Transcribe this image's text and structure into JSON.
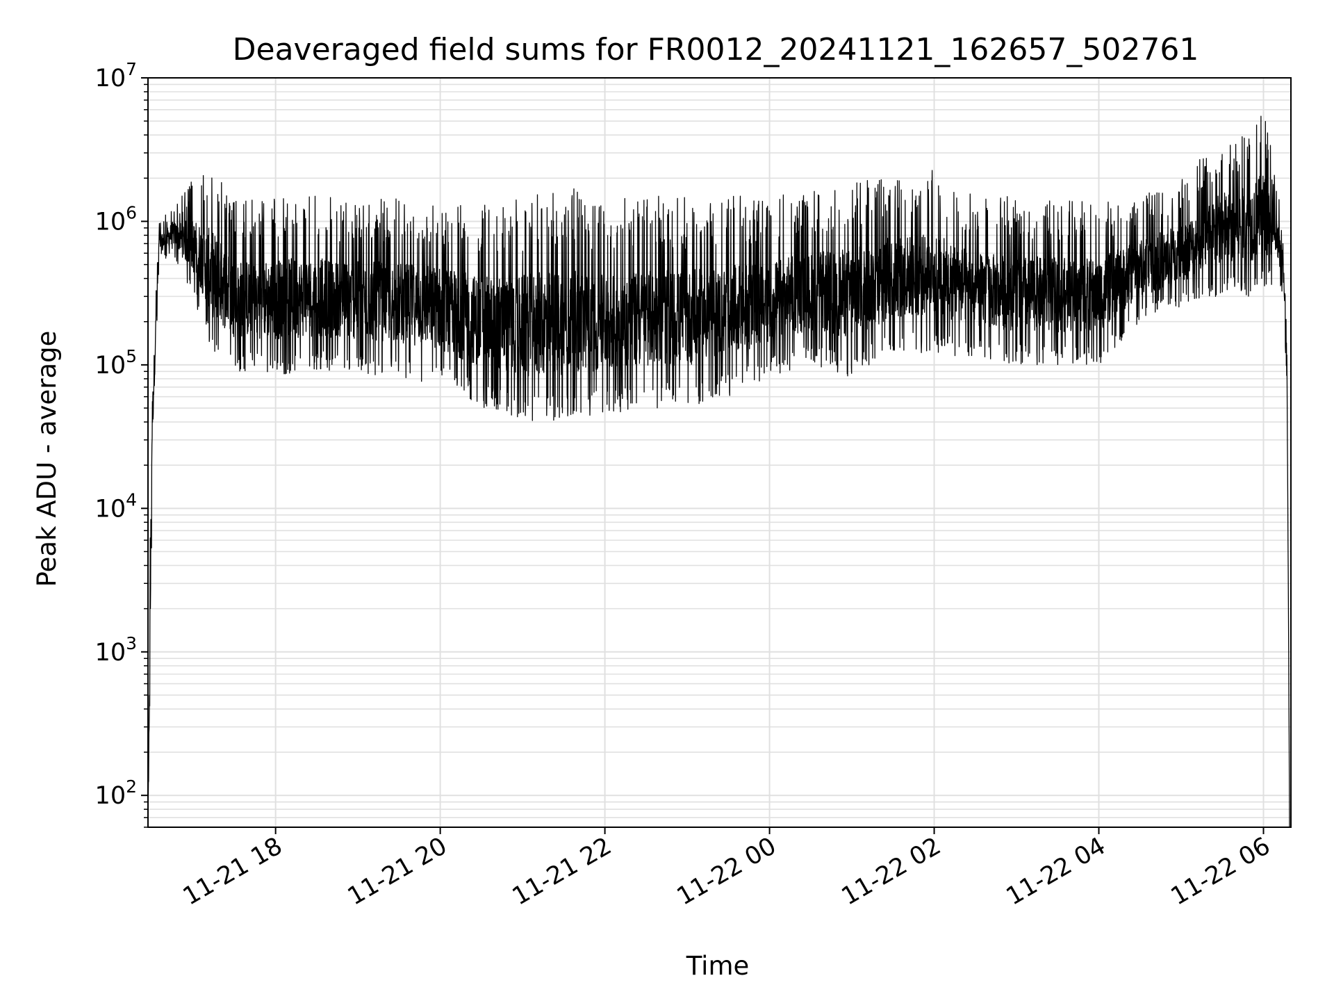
{
  "chart_data": {
    "type": "line",
    "title": "Deaveraged field sums for FR0012_20241121_162657_502761",
    "xlabel": "Time",
    "ylabel": "Peak ADU - average",
    "yscale": "log",
    "ylim": [
      60,
      10000000
    ],
    "xlim": [
      "2024-11-21 16:27",
      "2024-11-22 06:20"
    ],
    "grid": true,
    "line_color": "#000000",
    "grid_color": "#e0e0e0",
    "x_ticks": [
      {
        "time": "2024-11-21 18:00",
        "label": "11-21 18"
      },
      {
        "time": "2024-11-21 20:00",
        "label": "11-21 20"
      },
      {
        "time": "2024-11-21 22:00",
        "label": "11-21 22"
      },
      {
        "time": "2024-11-22 00:00",
        "label": "11-22 00"
      },
      {
        "time": "2024-11-22 02:00",
        "label": "11-22 02"
      },
      {
        "time": "2024-11-22 04:00",
        "label": "11-22 04"
      },
      {
        "time": "2024-11-22 06:00",
        "label": "11-22 06"
      }
    ],
    "y_ticks": [
      {
        "value": 100,
        "base": "10",
        "exp": "2"
      },
      {
        "value": 1000,
        "base": "10",
        "exp": "3"
      },
      {
        "value": 10000,
        "base": "10",
        "exp": "4"
      },
      {
        "value": 100000,
        "base": "10",
        "exp": "5"
      },
      {
        "value": 1000000,
        "base": "10",
        "exp": "6"
      },
      {
        "value": 10000000,
        "base": "10",
        "exp": "7"
      }
    ],
    "series": [
      {
        "values": [
          {
            "time": "2024-11-21 16:27",
            "low": 60,
            "high": 60
          },
          {
            "time": "2024-11-21 16:29",
            "low": 900,
            "high": 30000
          },
          {
            "time": "2024-11-21 16:30",
            "low": 18000,
            "high": 100000
          },
          {
            "time": "2024-11-21 16:35",
            "low": 500000,
            "high": 1000000
          },
          {
            "time": "2024-11-21 16:45",
            "low": 600000,
            "high": 1300000
          },
          {
            "time": "2024-11-21 17:00",
            "low": 300000,
            "high": 2000000
          },
          {
            "time": "2024-11-21 17:15",
            "low": 110000,
            "high": 2600000
          },
          {
            "time": "2024-11-21 17:30",
            "low": 90000,
            "high": 1400000
          },
          {
            "time": "2024-11-21 18:00",
            "low": 85000,
            "high": 1500000
          },
          {
            "time": "2024-11-21 18:30",
            "low": 90000,
            "high": 1500000
          },
          {
            "time": "2024-11-21 19:00",
            "low": 85000,
            "high": 1400000
          },
          {
            "time": "2024-11-21 19:30",
            "low": 80000,
            "high": 1450000
          },
          {
            "time": "2024-11-21 20:00",
            "low": 70000,
            "high": 1400000
          },
          {
            "time": "2024-11-21 20:30",
            "low": 50000,
            "high": 1300000
          },
          {
            "time": "2024-11-21 21:00",
            "low": 40000,
            "high": 1500000
          },
          {
            "time": "2024-11-21 21:30",
            "low": 40000,
            "high": 1800000
          },
          {
            "time": "2024-11-21 22:00",
            "low": 45000,
            "high": 1400000
          },
          {
            "time": "2024-11-21 22:30",
            "low": 50000,
            "high": 1500000
          },
          {
            "time": "2024-11-21 23:00",
            "low": 50000,
            "high": 1500000
          },
          {
            "time": "2024-11-21 23:30",
            "low": 60000,
            "high": 1500000
          },
          {
            "time": "2024-11-22 00:00",
            "low": 80000,
            "high": 1500000
          },
          {
            "time": "2024-11-22 00:30",
            "low": 100000,
            "high": 1600000
          },
          {
            "time": "2024-11-22 01:00",
            "low": 80000,
            "high": 2000000
          },
          {
            "time": "2024-11-22 01:30",
            "low": 120000,
            "high": 2200000
          },
          {
            "time": "2024-11-22 02:00",
            "low": 120000,
            "high": 2300000
          },
          {
            "time": "2024-11-22 02:30",
            "low": 110000,
            "high": 1500000
          },
          {
            "time": "2024-11-22 03:00",
            "low": 100000,
            "high": 1500000
          },
          {
            "time": "2024-11-22 03:30",
            "low": 100000,
            "high": 1400000
          },
          {
            "time": "2024-11-22 04:00",
            "low": 100000,
            "high": 1400000
          },
          {
            "time": "2024-11-22 04:30",
            "low": 200000,
            "high": 1500000
          },
          {
            "time": "2024-11-22 05:00",
            "low": 250000,
            "high": 2000000
          },
          {
            "time": "2024-11-22 05:30",
            "low": 300000,
            "high": 4000000
          },
          {
            "time": "2024-11-22 05:50",
            "low": 300000,
            "high": 4500000
          },
          {
            "time": "2024-11-22 06:00",
            "low": 350000,
            "high": 6000000
          },
          {
            "time": "2024-11-22 06:10",
            "low": 350000,
            "high": 2000000
          },
          {
            "time": "2024-11-22 06:15",
            "low": 300000,
            "high": 600000
          },
          {
            "time": "2024-11-22 06:17",
            "low": 50000,
            "high": 300000
          },
          {
            "time": "2024-11-22 06:18",
            "low": 3300,
            "high": 7000
          },
          {
            "time": "2024-11-22 06:19",
            "low": 60,
            "high": 60
          }
        ]
      }
    ]
  }
}
